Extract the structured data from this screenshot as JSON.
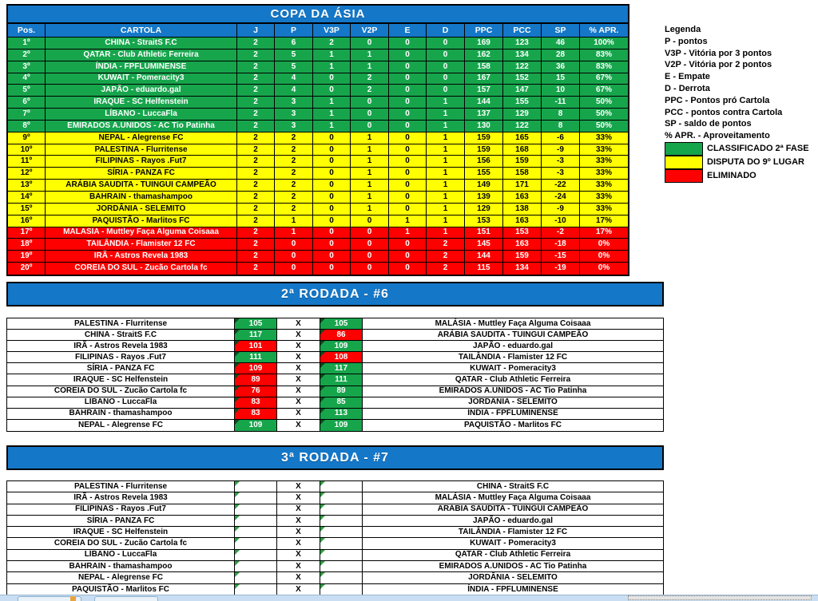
{
  "title": "COPA DA ÁSIA",
  "score_separator": "X",
  "colors": {
    "blue": "#1477c8",
    "green": "#17a54c",
    "yellow": "#ffff00",
    "red": "#fe0000"
  },
  "standings": {
    "headers": [
      "Pos.",
      "CARTOLA",
      "J",
      "P",
      "V3P",
      "V2P",
      "E",
      "D",
      "PPC",
      "PCC",
      "SP",
      "% APR."
    ],
    "rows": [
      {
        "pos": "1º",
        "cartola": "CHINA - StraitS F.C",
        "j": "2",
        "p": "6",
        "v3p": "2",
        "v2p": "0",
        "e": "0",
        "d": "0",
        "ppc": "169",
        "pcc": "123",
        "sp": "46",
        "apr": "100%",
        "group": "green"
      },
      {
        "pos": "2º",
        "cartola": "QATAR - Club Athletic Ferreira",
        "j": "2",
        "p": "5",
        "v3p": "1",
        "v2p": "1",
        "e": "0",
        "d": "0",
        "ppc": "162",
        "pcc": "134",
        "sp": "28",
        "apr": "83%",
        "group": "green"
      },
      {
        "pos": "3º",
        "cartola": "ÍNDIA - FPFLUMINENSE",
        "j": "2",
        "p": "5",
        "v3p": "1",
        "v2p": "1",
        "e": "0",
        "d": "0",
        "ppc": "158",
        "pcc": "122",
        "sp": "36",
        "apr": "83%",
        "group": "green"
      },
      {
        "pos": "4º",
        "cartola": "KUWAIT - Pomeracity3",
        "j": "2",
        "p": "4",
        "v3p": "0",
        "v2p": "2",
        "e": "0",
        "d": "0",
        "ppc": "167",
        "pcc": "152",
        "sp": "15",
        "apr": "67%",
        "group": "green"
      },
      {
        "pos": "5º",
        "cartola": "JAPÃO - eduardo.gal",
        "j": "2",
        "p": "4",
        "v3p": "0",
        "v2p": "2",
        "e": "0",
        "d": "0",
        "ppc": "157",
        "pcc": "147",
        "sp": "10",
        "apr": "67%",
        "group": "green"
      },
      {
        "pos": "6º",
        "cartola": "IRAQUE - SC Helfenstein",
        "j": "2",
        "p": "3",
        "v3p": "1",
        "v2p": "0",
        "e": "0",
        "d": "1",
        "ppc": "144",
        "pcc": "155",
        "sp": "-11",
        "apr": "50%",
        "group": "green"
      },
      {
        "pos": "7º",
        "cartola": "LÍBANO - LuccaFla",
        "j": "2",
        "p": "3",
        "v3p": "1",
        "v2p": "0",
        "e": "0",
        "d": "1",
        "ppc": "137",
        "pcc": "129",
        "sp": "8",
        "apr": "50%",
        "group": "green"
      },
      {
        "pos": "8º",
        "cartola": "EMIRADOS A.UNIDOS - AC Tio Patinha",
        "j": "2",
        "p": "3",
        "v3p": "1",
        "v2p": "0",
        "e": "0",
        "d": "1",
        "ppc": "130",
        "pcc": "122",
        "sp": "8",
        "apr": "50%",
        "group": "green"
      },
      {
        "pos": "9º",
        "cartola": "NEPAL - Alegrense FC",
        "j": "2",
        "p": "2",
        "v3p": "0",
        "v2p": "1",
        "e": "0",
        "d": "1",
        "ppc": "159",
        "pcc": "165",
        "sp": "-6",
        "apr": "33%",
        "group": "yellow"
      },
      {
        "pos": "10º",
        "cartola": "PALESTINA - Flurritense",
        "j": "2",
        "p": "2",
        "v3p": "0",
        "v2p": "1",
        "e": "0",
        "d": "1",
        "ppc": "159",
        "pcc": "168",
        "sp": "-9",
        "apr": "33%",
        "group": "yellow"
      },
      {
        "pos": "11º",
        "cartola": "FILIPINAS - Rayos .Fut7",
        "j": "2",
        "p": "2",
        "v3p": "0",
        "v2p": "1",
        "e": "0",
        "d": "1",
        "ppc": "156",
        "pcc": "159",
        "sp": "-3",
        "apr": "33%",
        "group": "yellow"
      },
      {
        "pos": "12º",
        "cartola": "SÍRIA - PANZA FC",
        "j": "2",
        "p": "2",
        "v3p": "0",
        "v2p": "1",
        "e": "0",
        "d": "1",
        "ppc": "155",
        "pcc": "158",
        "sp": "-3",
        "apr": "33%",
        "group": "yellow"
      },
      {
        "pos": "13º",
        "cartola": "ARÁBIA SAUDITA - TUINGUI CAMPEÃO",
        "j": "2",
        "p": "2",
        "v3p": "0",
        "v2p": "1",
        "e": "0",
        "d": "1",
        "ppc": "149",
        "pcc": "171",
        "sp": "-22",
        "apr": "33%",
        "group": "yellow"
      },
      {
        "pos": "14º",
        "cartola": "BAHRAIN - thamashampoo",
        "j": "2",
        "p": "2",
        "v3p": "0",
        "v2p": "1",
        "e": "0",
        "d": "1",
        "ppc": "139",
        "pcc": "163",
        "sp": "-24",
        "apr": "33%",
        "group": "yellow"
      },
      {
        "pos": "15º",
        "cartola": "JORDÂNIA - SELEMITO",
        "j": "2",
        "p": "2",
        "v3p": "0",
        "v2p": "1",
        "e": "0",
        "d": "1",
        "ppc": "129",
        "pcc": "138",
        "sp": "-9",
        "apr": "33%",
        "group": "yellow"
      },
      {
        "pos": "16º",
        "cartola": "PAQUISTÃO - Marlitos FC",
        "j": "2",
        "p": "1",
        "v3p": "0",
        "v2p": "0",
        "e": "1",
        "d": "1",
        "ppc": "153",
        "pcc": "163",
        "sp": "-10",
        "apr": "17%",
        "group": "yellow"
      },
      {
        "pos": "17º",
        "cartola": "MALÁSIA - Muttley Faça Alguma Coisaaa",
        "j": "2",
        "p": "1",
        "v3p": "0",
        "v2p": "0",
        "e": "1",
        "d": "1",
        "ppc": "151",
        "pcc": "153",
        "sp": "-2",
        "apr": "17%",
        "group": "red"
      },
      {
        "pos": "18º",
        "cartola": "TAILÂNDIA - Flamister 12 FC",
        "j": "2",
        "p": "0",
        "v3p": "0",
        "v2p": "0",
        "e": "0",
        "d": "2",
        "ppc": "145",
        "pcc": "163",
        "sp": "-18",
        "apr": "0%",
        "group": "red"
      },
      {
        "pos": "19º",
        "cartola": "IRÃ - Astros Revela 1983",
        "j": "2",
        "p": "0",
        "v3p": "0",
        "v2p": "0",
        "e": "0",
        "d": "2",
        "ppc": "144",
        "pcc": "159",
        "sp": "-15",
        "apr": "0%",
        "group": "red"
      },
      {
        "pos": "20º",
        "cartola": "COREIA DO SUL - Zucão Cartola fc",
        "j": "2",
        "p": "0",
        "v3p": "0",
        "v2p": "0",
        "e": "0",
        "d": "2",
        "ppc": "115",
        "pcc": "134",
        "sp": "-19",
        "apr": "0%",
        "group": "red"
      }
    ]
  },
  "legend": {
    "title": "Legenda",
    "items": [
      "P - pontos",
      "V3P - Vitória por 3 pontos",
      "V2P - Vitória por 2 pontos",
      "E - Empate",
      "D - Derrota",
      "PPC - Pontos pró Cartola",
      "PCC - pontos contra Cartola",
      "SP - saldo de pontos",
      "% APR. - Aproveitamento"
    ],
    "statuses": [
      {
        "color": "#17a54c",
        "label": "CLASSIFICADO 2ª FASE"
      },
      {
        "color": "#ffff00",
        "label": "DISPUTA DO 9º LUGAR"
      },
      {
        "color": "#fe0000",
        "label": "ELIMINADO"
      }
    ]
  },
  "round2": {
    "title": "2ª RODADA - #6",
    "matches": [
      {
        "home": "PALESTINA - Flurritense",
        "home_score": "105",
        "home_result": "green",
        "away_score": "105",
        "away_result": "green",
        "away": "MALÁSIA - Muttley Faça Alguma Coisaaa"
      },
      {
        "home": "CHINA - StraitS F.C",
        "home_score": "117",
        "home_result": "green",
        "away_score": "86",
        "away_result": "red",
        "away": "ARÁBIA SAUDITA - TUINGUI CAMPEÃO"
      },
      {
        "home": "IRÃ - Astros Revela 1983",
        "home_score": "101",
        "home_result": "red",
        "away_score": "109",
        "away_result": "green",
        "away": "JAPÃO - eduardo.gal"
      },
      {
        "home": "FILIPINAS - Rayos .Fut7",
        "home_score": "111",
        "home_result": "green",
        "away_score": "108",
        "away_result": "red",
        "away": "TAILÂNDIA - Flamister 12 FC"
      },
      {
        "home": "SÍRIA - PANZA FC",
        "home_score": "109",
        "home_result": "red",
        "away_score": "117",
        "away_result": "green",
        "away": "KUWAIT - Pomeracity3"
      },
      {
        "home": "IRAQUE - SC Helfenstein",
        "home_score": "89",
        "home_result": "red",
        "away_score": "111",
        "away_result": "green",
        "away": "QATAR - Club Athletic Ferreira"
      },
      {
        "home": "COREIA DO SUL - Zucão Cartola fc",
        "home_score": "76",
        "home_result": "red",
        "away_score": "89",
        "away_result": "green",
        "away": "EMIRADOS A.UNIDOS - AC Tio Patinha"
      },
      {
        "home": "LÍBANO - LuccaFla",
        "home_score": "83",
        "home_result": "red",
        "away_score": "85",
        "away_result": "green",
        "away": "JORDÂNIA - SELEMITO"
      },
      {
        "home": "BAHRAIN - thamashampoo",
        "home_score": "83",
        "home_result": "red",
        "away_score": "113",
        "away_result": "green",
        "away": "ÍNDIA - FPFLUMINENSE"
      },
      {
        "home": "NEPAL - Alegrense FC",
        "home_score": "109",
        "home_result": "green",
        "away_score": "109",
        "away_result": "green",
        "away": "PAQUISTÃO - Marlitos FC"
      }
    ]
  },
  "round3": {
    "title": "3ª RODADA - #7",
    "matches": [
      {
        "home": "PALESTINA - Flurritense",
        "home_score": "",
        "home_result": "",
        "away_score": "",
        "away_result": "",
        "away": "CHINA - StraitS F.C"
      },
      {
        "home": "IRÃ - Astros Revela 1983",
        "home_score": "",
        "home_result": "",
        "away_score": "",
        "away_result": "",
        "away": "MALÁSIA - Muttley Faça Alguma Coisaaa"
      },
      {
        "home": "FILIPINAS - Rayos .Fut7",
        "home_score": "",
        "home_result": "",
        "away_score": "",
        "away_result": "",
        "away": "ARÁBIA SAUDITA - TUINGUI CAMPEÃO"
      },
      {
        "home": "SÍRIA - PANZA FC",
        "home_score": "",
        "home_result": "",
        "away_score": "",
        "away_result": "",
        "away": "JAPÃO - eduardo.gal"
      },
      {
        "home": "IRAQUE - SC Helfenstein",
        "home_score": "",
        "home_result": "",
        "away_score": "",
        "away_result": "",
        "away": "TAILÂNDIA - Flamister 12 FC"
      },
      {
        "home": "COREIA DO SUL - Zucão Cartola fc",
        "home_score": "",
        "home_result": "",
        "away_score": "",
        "away_result": "",
        "away": "KUWAIT - Pomeracity3"
      },
      {
        "home": "LÍBANO - LuccaFla",
        "home_score": "",
        "home_result": "",
        "away_score": "",
        "away_result": "",
        "away": "QATAR - Club Athletic Ferreira"
      },
      {
        "home": "BAHRAIN - thamashampoo",
        "home_score": "",
        "home_result": "",
        "away_score": "",
        "away_result": "",
        "away": "EMIRADOS A.UNIDOS - AC Tio Patinha"
      },
      {
        "home": "NEPAL - Alegrense FC",
        "home_score": "",
        "home_result": "",
        "away_score": "",
        "away_result": "",
        "away": "JORDÂNIA - SELEMITO"
      },
      {
        "home": "PAQUISTÃO - Marlitos FC",
        "home_score": "",
        "home_result": "",
        "away_score": "",
        "away_result": "",
        "away": "ÍNDIA - FPFLUMINENSE"
      }
    ]
  }
}
